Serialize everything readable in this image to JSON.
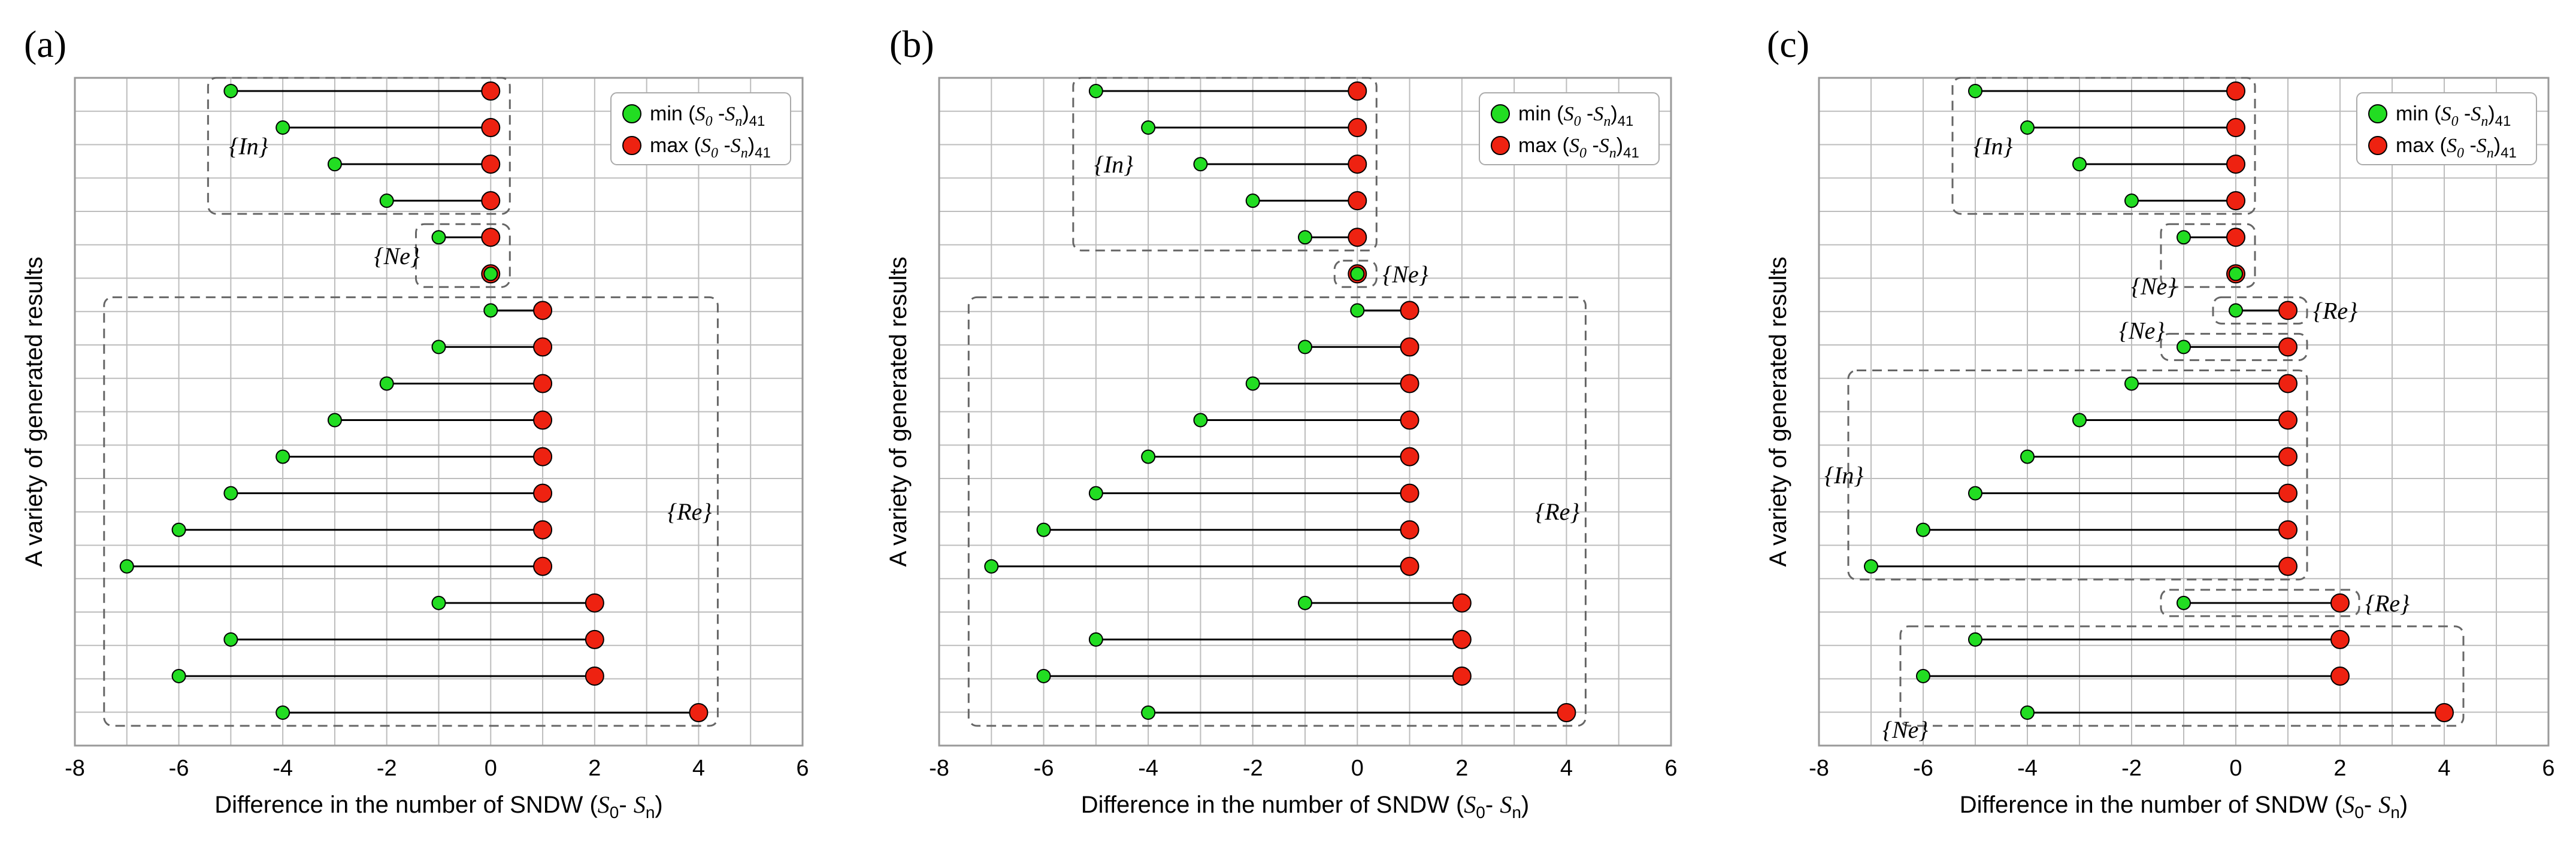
{
  "figure_title": "",
  "colors": {
    "min_marker": "#22dd22",
    "max_marker": "#ee2211",
    "stem": "#000000",
    "grid": "#bdbdbd"
  },
  "chart_data": [
    {
      "type": "dumbbell",
      "panel_label": "(a)",
      "title": "",
      "xlabel": "Difference in the number of SNDW (S0-Sn)",
      "ylabel": "A variety of generated results",
      "xlim": [
        -8,
        6
      ],
      "x_ticks": [
        "-8",
        "-6",
        "-4",
        "-2",
        "0",
        "2",
        "4",
        "6"
      ],
      "legend": {
        "min": "min(S0-Sn)41",
        "max": "max(S0-Sn)41"
      },
      "rows": [
        {
          "min": -5,
          "max": 0
        },
        {
          "min": -4,
          "max": 0
        },
        {
          "min": -3,
          "max": 0
        },
        {
          "min": -2,
          "max": 0
        },
        {
          "min": -1,
          "max": 0
        },
        {
          "min": 0,
          "max": 0
        },
        {
          "min": 0,
          "max": 1
        },
        {
          "min": -1,
          "max": 1
        },
        {
          "min": -2,
          "max": 1
        },
        {
          "min": -3,
          "max": 1
        },
        {
          "min": -4,
          "max": 1
        },
        {
          "min": -5,
          "max": 1
        },
        {
          "min": -6,
          "max": 1
        },
        {
          "min": -7,
          "max": 1
        },
        {
          "min": -1,
          "max": 2
        },
        {
          "min": -5,
          "max": 2
        },
        {
          "min": -6,
          "max": 2
        },
        {
          "min": -4,
          "max": 4
        }
      ],
      "groups": [
        {
          "label": "{In}",
          "rows": [
            0,
            3
          ],
          "xmin": -5,
          "xmax": 0
        },
        {
          "label": "{Ne}",
          "rows": [
            4,
            5
          ],
          "xmin": -1,
          "xmax": 0
        },
        {
          "label": "{Re}",
          "rows": [
            6,
            17
          ],
          "xmin": -7,
          "xmax": 4
        }
      ]
    },
    {
      "type": "dumbbell",
      "panel_label": "(b)",
      "title": "",
      "xlabel": "Difference in the number of SNDW (S0-Sn)",
      "ylabel": "A variety of generated results",
      "xlim": [
        -8,
        6
      ],
      "x_ticks": [
        "-8",
        "-6",
        "-4",
        "-2",
        "0",
        "2",
        "4",
        "6"
      ],
      "legend": {
        "min": "min(S0-Sn)41",
        "max": "max(S0-Sn)41"
      },
      "rows": [
        {
          "min": -5,
          "max": 0
        },
        {
          "min": -4,
          "max": 0
        },
        {
          "min": -3,
          "max": 0
        },
        {
          "min": -2,
          "max": 0
        },
        {
          "min": -1,
          "max": 0
        },
        {
          "min": 0,
          "max": 0
        },
        {
          "min": 0,
          "max": 1
        },
        {
          "min": -1,
          "max": 1
        },
        {
          "min": -2,
          "max": 1
        },
        {
          "min": -3,
          "max": 1
        },
        {
          "min": -4,
          "max": 1
        },
        {
          "min": -5,
          "max": 1
        },
        {
          "min": -6,
          "max": 1
        },
        {
          "min": -7,
          "max": 1
        },
        {
          "min": -1,
          "max": 2
        },
        {
          "min": -5,
          "max": 2
        },
        {
          "min": -6,
          "max": 2
        },
        {
          "min": -4,
          "max": 4
        }
      ],
      "groups": [
        {
          "label": "{In}",
          "rows": [
            0,
            4
          ],
          "xmin": -5,
          "xmax": 0
        },
        {
          "label": "{Ne}",
          "rows": [
            5,
            5
          ],
          "xmin": 0,
          "xmax": 0
        },
        {
          "label": "{Re}",
          "rows": [
            6,
            17
          ],
          "xmin": -7,
          "xmax": 4
        }
      ]
    },
    {
      "type": "dumbbell",
      "panel_label": "(c)",
      "title": "",
      "xlabel": "Difference in the number of SNDW (S0-Sn)",
      "ylabel": "A variety of generated results",
      "xlim": [
        -8,
        6
      ],
      "x_ticks": [
        "-8",
        "-6",
        "-4",
        "-2",
        "0",
        "2",
        "4",
        "6"
      ],
      "legend": {
        "min": "min(S0-Sn)41",
        "max": "max(S0-Sn)41"
      },
      "rows": [
        {
          "min": -5,
          "max": 0
        },
        {
          "min": -4,
          "max": 0
        },
        {
          "min": -3,
          "max": 0
        },
        {
          "min": -2,
          "max": 0
        },
        {
          "min": -1,
          "max": 0
        },
        {
          "min": 0,
          "max": 0
        },
        {
          "min": 0,
          "max": 1
        },
        {
          "min": -1,
          "max": 1
        },
        {
          "min": -2,
          "max": 1
        },
        {
          "min": -3,
          "max": 1
        },
        {
          "min": -4,
          "max": 1
        },
        {
          "min": -5,
          "max": 1
        },
        {
          "min": -6,
          "max": 1
        },
        {
          "min": -7,
          "max": 1
        },
        {
          "min": -1,
          "max": 2
        },
        {
          "min": -5,
          "max": 2
        },
        {
          "min": -6,
          "max": 2
        },
        {
          "min": -4,
          "max": 4
        }
      ],
      "groups": [
        {
          "label": "{In}",
          "rows": [
            0,
            3
          ],
          "xmin": -5,
          "xmax": 0
        },
        {
          "label": "{Ne}",
          "rows": [
            4,
            5
          ],
          "xmin": -1,
          "xmax": 0
        },
        {
          "label": "{Re}",
          "rows": [
            6,
            6
          ],
          "xmin": 0,
          "xmax": 1
        },
        {
          "label": "{Ne}",
          "rows": [
            7,
            7
          ],
          "xmin": -1,
          "xmax": 1
        },
        {
          "label": "{In}",
          "rows": [
            8,
            13
          ],
          "xmin": -7,
          "xmax": 1
        },
        {
          "label": "{Re}",
          "rows": [
            14,
            14
          ],
          "xmin": -1,
          "xmax": 2
        },
        {
          "label": "{Ne}",
          "rows": [
            15,
            17
          ],
          "xmin": -6,
          "xmax": 4
        }
      ]
    }
  ]
}
